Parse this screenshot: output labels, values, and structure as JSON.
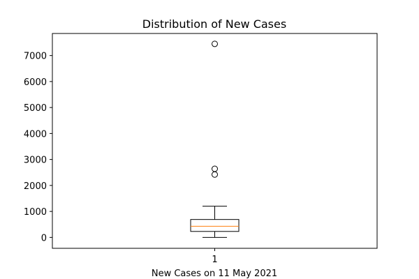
{
  "chart_data": {
    "type": "box",
    "title": "Distribution of New Cases",
    "xlabel": "New Cases on 11 May 2021",
    "ylabel": "",
    "ylim": [
      -420,
      7850
    ],
    "yticks": [
      0,
      1000,
      2000,
      3000,
      4000,
      5000,
      6000,
      7000
    ],
    "categories": [
      "1"
    ],
    "boxes": [
      {
        "category": "1",
        "whisker_low": 0,
        "q1": 230,
        "median": 430,
        "q3": 690,
        "whisker_high": 1200,
        "outliers": [
          2420,
          2640,
          7450
        ]
      }
    ],
    "grid": false,
    "colors": {
      "box": "#000000",
      "median": "#ff7f0e",
      "outlier": "#000000"
    }
  }
}
